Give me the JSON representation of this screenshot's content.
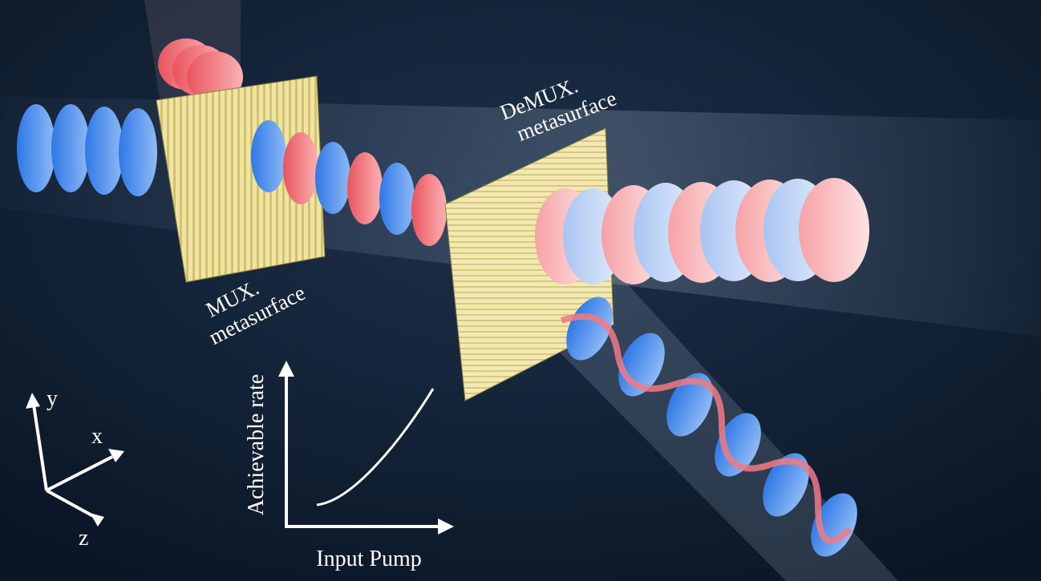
{
  "labels": {
    "demux": [
      "DeMUX.",
      "metasurface"
    ],
    "mux": [
      "MUX.",
      "metasurface"
    ]
  },
  "inset": {
    "y_label": "Achievable rate",
    "x_label": "Input Pump"
  },
  "axes": {
    "x": "x",
    "y": "y",
    "z": "z"
  }
}
